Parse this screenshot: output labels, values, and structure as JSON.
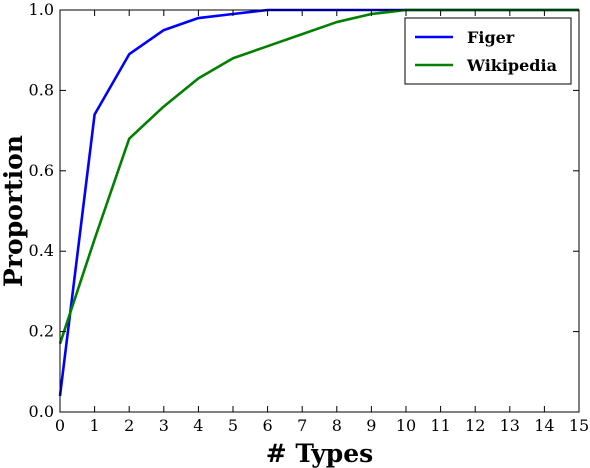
{
  "chart_data": {
    "type": "line",
    "title": "",
    "xlabel": "# Types",
    "ylabel": "Proportion",
    "xlim": [
      0,
      15
    ],
    "ylim": [
      0.0,
      1.0
    ],
    "xticks": [
      0,
      1,
      2,
      3,
      4,
      5,
      6,
      7,
      8,
      9,
      10,
      11,
      12,
      13,
      14,
      15
    ],
    "xtick_labels": [
      "0",
      "1",
      "2",
      "3",
      "4",
      "5",
      "6",
      "7",
      "8",
      "9",
      "10",
      "11",
      "12",
      "13",
      "14",
      "15"
    ],
    "yticks": [
      0.0,
      0.2,
      0.4,
      0.6,
      0.8,
      1.0
    ],
    "ytick_labels": [
      "0.0",
      "0.2",
      "0.4",
      "0.6",
      "0.8",
      "1.0"
    ],
    "grid": false,
    "legend_position": "top-right",
    "series": [
      {
        "name": "Figer",
        "color": "#0000ff",
        "x": [
          0,
          1,
          2,
          3,
          4,
          5,
          6,
          7,
          8,
          9,
          10,
          11,
          12,
          13,
          14,
          15
        ],
        "y": [
          0.04,
          0.74,
          0.89,
          0.95,
          0.98,
          0.99,
          1.0,
          1.0,
          1.0,
          1.0,
          1.0,
          1.0,
          1.0,
          1.0,
          1.0,
          1.0
        ]
      },
      {
        "name": "Wikipedia",
        "color": "#008000",
        "x": [
          0,
          1,
          2,
          3,
          4,
          5,
          6,
          7,
          8,
          9,
          10,
          11,
          12,
          13,
          14,
          15
        ],
        "y": [
          0.17,
          0.43,
          0.68,
          0.76,
          0.83,
          0.88,
          0.91,
          0.94,
          0.97,
          0.99,
          1.0,
          1.0,
          1.0,
          1.0,
          1.0,
          1.0
        ]
      }
    ]
  }
}
